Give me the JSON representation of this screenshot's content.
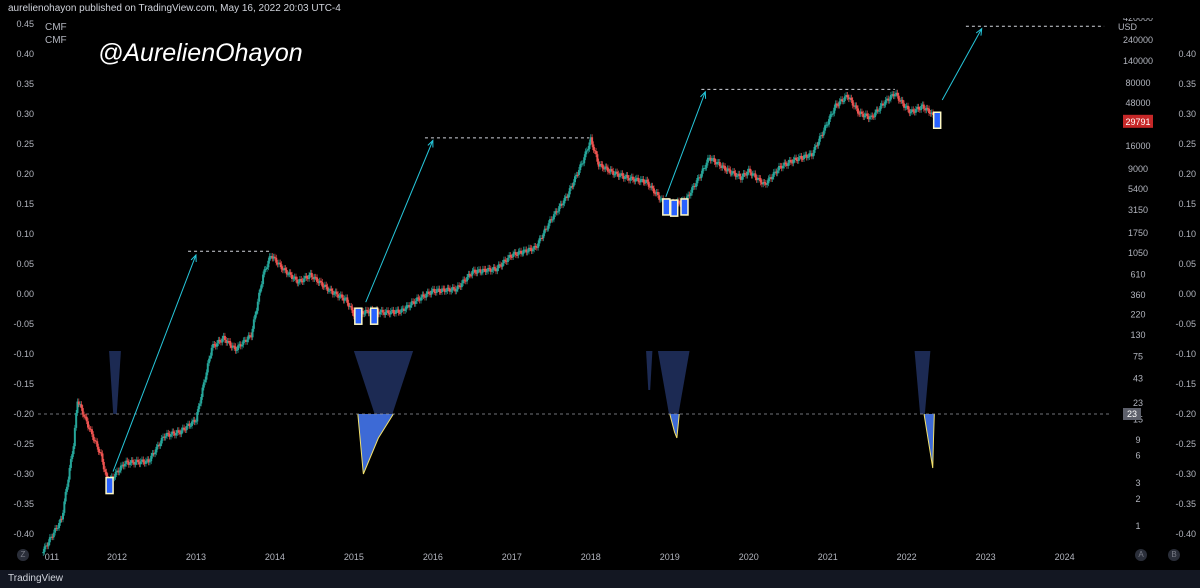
{
  "header": {
    "publish_text": "aurelienohayon published on TradingView.com, May 16, 2022 20:03 UTC-4"
  },
  "footer": {
    "brand": "TradingView"
  },
  "buttons": {
    "left": "Z",
    "right_a": "A",
    "right_b": "B"
  },
  "watermark": "@AurelienOhayon",
  "colors": {
    "background": "#000000",
    "candle_up": "#26a69a",
    "candle_down": "#ef5350",
    "arrow": "#26c6da",
    "cmf_fill": "#3d6ad6",
    "cmf_fill_dark": "#1e2c57",
    "highlight_box": "#fff9c4",
    "price_tag": "#c62828"
  },
  "chart_data": {
    "type": "candlestick",
    "title": "",
    "symbol_currency": "USD",
    "indicator_labels": [
      "CMF",
      "CMF"
    ],
    "x_ticks": [
      "011",
      "2012",
      "2013",
      "2014",
      "2015",
      "2016",
      "2017",
      "2018",
      "2019",
      "2020",
      "2021",
      "2022",
      "2023",
      "2024"
    ],
    "price_axis_ticks": [
      "420000",
      "240000",
      "140000",
      "80000",
      "48000",
      "29791",
      "16000",
      "9000",
      "5400",
      "3150",
      "1750",
      "1050",
      "610",
      "360",
      "220",
      "130",
      "75",
      "43",
      "23",
      "15",
      "9",
      "6",
      "3",
      "2",
      "1"
    ],
    "price_scale": "log",
    "price_ylim": [
      0.6,
      420000
    ],
    "cmf_ticks_left": [
      "0.45",
      "0.40",
      "0.35",
      "0.30",
      "0.25",
      "0.20",
      "0.15",
      "0.10",
      "0.05",
      "0.00",
      "-0.05",
      "-0.10",
      "-0.15",
      "-0.20",
      "-0.25",
      "-0.30",
      "-0.35",
      "-0.40"
    ],
    "cmf_ticks_right": [
      "0.40",
      "0.35",
      "0.30",
      "0.25",
      "0.20",
      "0.15",
      "0.10",
      "0.05",
      "0.00",
      "-0.05",
      "-0.10",
      "-0.15",
      "-0.20",
      "-0.25",
      "-0.30",
      "-0.35",
      "-0.40"
    ],
    "cmf_ylim": [
      -0.42,
      0.46
    ],
    "last_price_label": "29791",
    "cmf_level_label": "23",
    "cmf_threshold": -0.2,
    "price_series": [
      {
        "t": 2011.05,
        "v": 0.5
      },
      {
        "t": 2011.3,
        "v": 1.2
      },
      {
        "t": 2011.45,
        "v": 8
      },
      {
        "t": 2011.5,
        "v": 25
      },
      {
        "t": 2011.65,
        "v": 12
      },
      {
        "t": 2011.8,
        "v": 6
      },
      {
        "t": 2011.88,
        "v": 3
      },
      {
        "t": 2011.95,
        "v": 3.5
      },
      {
        "t": 2012.1,
        "v": 5
      },
      {
        "t": 2012.4,
        "v": 5.2
      },
      {
        "t": 2012.6,
        "v": 10
      },
      {
        "t": 2012.8,
        "v": 11
      },
      {
        "t": 2013.0,
        "v": 15
      },
      {
        "t": 2013.2,
        "v": 95
      },
      {
        "t": 2013.35,
        "v": 120
      },
      {
        "t": 2013.5,
        "v": 90
      },
      {
        "t": 2013.7,
        "v": 130
      },
      {
        "t": 2013.85,
        "v": 600
      },
      {
        "t": 2013.95,
        "v": 1000
      },
      {
        "t": 2014.1,
        "v": 700
      },
      {
        "t": 2014.3,
        "v": 500
      },
      {
        "t": 2014.45,
        "v": 600
      },
      {
        "t": 2014.7,
        "v": 400
      },
      {
        "t": 2014.9,
        "v": 320
      },
      {
        "t": 2015.0,
        "v": 220
      },
      {
        "t": 2015.2,
        "v": 240
      },
      {
        "t": 2015.4,
        "v": 230
      },
      {
        "t": 2015.6,
        "v": 240
      },
      {
        "t": 2015.8,
        "v": 320
      },
      {
        "t": 2016.0,
        "v": 400
      },
      {
        "t": 2016.3,
        "v": 420
      },
      {
        "t": 2016.5,
        "v": 650
      },
      {
        "t": 2016.8,
        "v": 700
      },
      {
        "t": 2017.0,
        "v": 1000
      },
      {
        "t": 2017.3,
        "v": 1200
      },
      {
        "t": 2017.5,
        "v": 2500
      },
      {
        "t": 2017.7,
        "v": 4500
      },
      {
        "t": 2017.9,
        "v": 11000
      },
      {
        "t": 2018.0,
        "v": 19000
      },
      {
        "t": 2018.1,
        "v": 10000
      },
      {
        "t": 2018.3,
        "v": 8000
      },
      {
        "t": 2018.5,
        "v": 7000
      },
      {
        "t": 2018.7,
        "v": 6500
      },
      {
        "t": 2018.9,
        "v": 4000
      },
      {
        "t": 2019.0,
        "v": 3600
      },
      {
        "t": 2019.2,
        "v": 4000
      },
      {
        "t": 2019.4,
        "v": 8000
      },
      {
        "t": 2019.5,
        "v": 12000
      },
      {
        "t": 2019.7,
        "v": 9000
      },
      {
        "t": 2019.9,
        "v": 7200
      },
      {
        "t": 2020.0,
        "v": 8500
      },
      {
        "t": 2020.2,
        "v": 6000
      },
      {
        "t": 2020.4,
        "v": 9500
      },
      {
        "t": 2020.6,
        "v": 11500
      },
      {
        "t": 2020.8,
        "v": 13000
      },
      {
        "t": 2020.95,
        "v": 24000
      },
      {
        "t": 2021.1,
        "v": 45000
      },
      {
        "t": 2021.25,
        "v": 58000
      },
      {
        "t": 2021.4,
        "v": 37000
      },
      {
        "t": 2021.55,
        "v": 33000
      },
      {
        "t": 2021.7,
        "v": 47000
      },
      {
        "t": 2021.85,
        "v": 62000
      },
      {
        "t": 2021.95,
        "v": 47000
      },
      {
        "t": 2022.05,
        "v": 38000
      },
      {
        "t": 2022.2,
        "v": 44000
      },
      {
        "t": 2022.3,
        "v": 38000
      },
      {
        "t": 2022.38,
        "v": 29791
      }
    ],
    "cmf_dark_regions": [
      {
        "t_start": 2011.9,
        "t_end": 2012.05,
        "min": -0.2
      },
      {
        "t_start": 2015.0,
        "t_end": 2015.75,
        "min": -0.2
      },
      {
        "t_start": 2018.7,
        "t_end": 2018.78,
        "min": -0.16
      },
      {
        "t_start": 2018.85,
        "t_end": 2019.25,
        "min": -0.2
      },
      {
        "t_start": 2022.1,
        "t_end": 2022.3,
        "min": -0.2
      }
    ],
    "cmf_dips": [
      {
        "t_start": 2015.05,
        "t_min": 2015.12,
        "t_end": 2015.5,
        "min": -0.3
      },
      {
        "t_start": 2019.0,
        "t_min": 2019.06,
        "t_end": 2019.12,
        "min": -0.23
      },
      {
        "t_start": 2022.22,
        "t_min": 2022.33,
        "t_end": 2022.35,
        "min": -0.29
      }
    ],
    "resistance_levels": [
      {
        "t_start": 2012.9,
        "t_end": 2013.95,
        "v": 1100
      },
      {
        "t_start": 2015.9,
        "t_end": 2017.98,
        "v": 19800
      },
      {
        "t_start": 2019.4,
        "t_end": 2021.85,
        "v": 68000
      },
      {
        "t_start": 2022.75,
        "t_end": 2024.5,
        "v": 340000
      }
    ],
    "arrows": [
      {
        "t1": 2011.95,
        "v1": 4,
        "t2": 2013.0,
        "v2": 1000
      },
      {
        "t1": 2015.15,
        "v1": 300,
        "t2": 2016.0,
        "v2": 18500
      },
      {
        "t1": 2018.95,
        "v1": 4400,
        "t2": 2019.45,
        "v2": 64000
      },
      {
        "t1": 2022.45,
        "v1": 52000,
        "t2": 2022.95,
        "v2": 320000
      }
    ],
    "highlight_boxes": [
      {
        "t": 2011.9,
        "v": 2.8
      },
      {
        "t": 2015.05,
        "v": 210
      },
      {
        "t": 2015.25,
        "v": 210
      },
      {
        "t": 2018.95,
        "v": 3400
      },
      {
        "t": 2019.05,
        "v": 3300
      },
      {
        "t": 2019.18,
        "v": 3400
      },
      {
        "t": 2022.38,
        "v": 31000
      }
    ]
  }
}
